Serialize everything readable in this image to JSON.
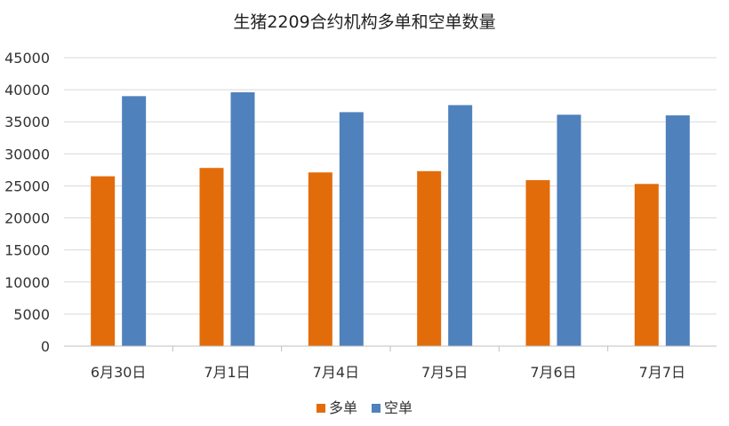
{
  "chart_data": {
    "type": "bar",
    "title": "生猪2209合约机构多单和空单数量",
    "xlabel": "",
    "ylabel": "",
    "categories": [
      "6月30日",
      "7月1日",
      "7月4日",
      "7月5日",
      "7月6日",
      "7月7日"
    ],
    "series": [
      {
        "name": "多单",
        "color": "#e36c0a",
        "values": [
          26500,
          27800,
          27100,
          27300,
          25900,
          25300
        ]
      },
      {
        "name": "空单",
        "color": "#4f81bd",
        "values": [
          39000,
          39600,
          36500,
          37600,
          36100,
          36000
        ]
      }
    ],
    "ylim": [
      0,
      45000
    ],
    "yticks": [
      0,
      5000,
      10000,
      15000,
      20000,
      25000,
      30000,
      35000,
      40000,
      45000
    ],
    "grid": true,
    "legend": "bottom-center"
  }
}
